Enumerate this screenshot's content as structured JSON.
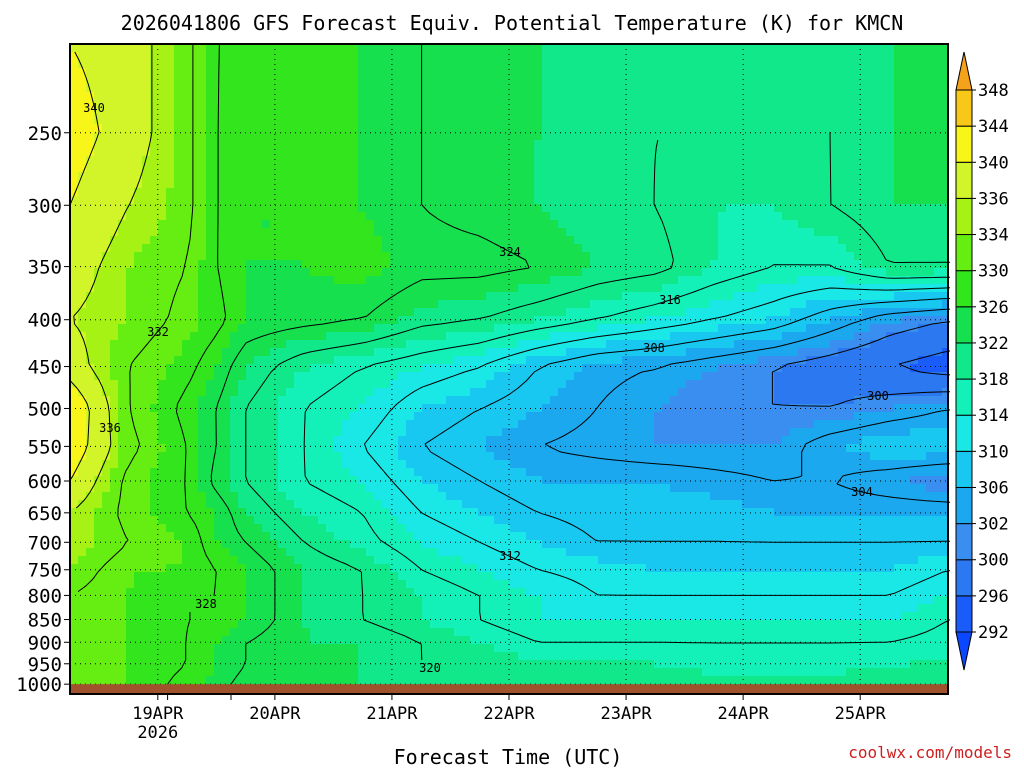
{
  "chart_data": {
    "type": "heatmap",
    "title": "2026041806 GFS Forecast Equiv. Potential Temperature (K) for KMCN",
    "xlabel": "Forecast Time (UTC)",
    "ylabel": "",
    "y_axis": {
      "scale": "log-pressure",
      "inverted": true,
      "ylim": [
        200,
        1025
      ],
      "ticks": [
        250,
        300,
        350,
        400,
        450,
        500,
        550,
        600,
        650,
        700,
        750,
        800,
        850,
        900,
        950,
        1000
      ],
      "tick_labels": [
        "250",
        "300",
        "350",
        "400",
        "450",
        "500",
        "550",
        "600",
        "650",
        "700",
        "750",
        "800",
        "850",
        "900",
        "950",
        "1000"
      ]
    },
    "x_axis": {
      "xlim": [
        "2026-04-18T06",
        "2026-04-25T18"
      ],
      "ticks": [
        "2026-04-19T00",
        "2026-04-20T00",
        "2026-04-21T00",
        "2026-04-22T00",
        "2026-04-23T00",
        "2026-04-24T00",
        "2026-04-25T00"
      ],
      "tick_labels": [
        "19APR",
        "20APR",
        "21APR",
        "22APR",
        "23APR",
        "24APR",
        "25APR"
      ],
      "first_tick_sublabel": "2026"
    },
    "grid": "dotted",
    "colorbar": {
      "placement": "right",
      "labels": [
        "292",
        "296",
        "300",
        "302",
        "306",
        "310",
        "314",
        "318",
        "322",
        "326",
        "330",
        "334",
        "336",
        "340",
        "344",
        "348"
      ],
      "colors": [
        "#0a47ff",
        "#1a5cfa",
        "#2c78f0",
        "#3a8ef0",
        "#1ba8ee",
        "#18c8f0",
        "#19e8e6",
        "#13f0b8",
        "#10e88a",
        "#16e04e",
        "#33e51c",
        "#66ee12",
        "#a6f214",
        "#d2f52a",
        "#f8f518",
        "#f7c818",
        "#f4a21a"
      ]
    },
    "theta_e_field_K": {
      "times": [
        "2026-04-18T06",
        "2026-04-18T18",
        "2026-04-19T06",
        "2026-04-19T12",
        "2026-04-19T18",
        "2026-04-20T06",
        "2026-04-20T18",
        "2026-04-21T06",
        "2026-04-21T18",
        "2026-04-22T06",
        "2026-04-22T18",
        "2026-04-23T06",
        "2026-04-23T18",
        "2026-04-24T06",
        "2026-04-24T18",
        "2026-04-25T06",
        "2026-04-25T18"
      ],
      "levels_hPa": [
        200,
        250,
        300,
        350,
        400,
        450,
        500,
        550,
        600,
        650,
        700,
        750,
        800,
        850,
        900,
        950,
        1000
      ],
      "values": [
        [
          340,
          342,
          340,
          338,
          336,
          338,
          344,
          343,
          340,
          336,
          336,
          334,
          332,
          332,
          332,
          332,
          332
        ],
        [
          338,
          338,
          336,
          334,
          334,
          332,
          332,
          333,
          331,
          331,
          332,
          330,
          330,
          330,
          330,
          330,
          330
        ],
        [
          333,
          333,
          333,
          332,
          331,
          329,
          327,
          328,
          328,
          328,
          330,
          330,
          328,
          328,
          328,
          328,
          327
        ],
        [
          328,
          328,
          328,
          328,
          329,
          326,
          324,
          324,
          323,
          326,
          326,
          328,
          328,
          328,
          326,
          326,
          325
        ],
        [
          327,
          326,
          326,
          326,
          326,
          322,
          320,
          320,
          320,
          322,
          324,
          326,
          326,
          326,
          324,
          324,
          323
        ],
        [
          327,
          327,
          326,
          326,
          325,
          318,
          316,
          316,
          316,
          318,
          320,
          322,
          322,
          322,
          322,
          322,
          322
        ],
        [
          326,
          326,
          326,
          327,
          324,
          316,
          314,
          312,
          314,
          316,
          317,
          320,
          320,
          320,
          322,
          322,
          322
        ],
        [
          324,
          324,
          324,
          325,
          321,
          314,
          310,
          308,
          310,
          312,
          314,
          316,
          318,
          318,
          320,
          320,
          320
        ],
        [
          323,
          323,
          323,
          325,
          320,
          312,
          308,
          306,
          308,
          310,
          312,
          314,
          316,
          316,
          318,
          320,
          320
        ],
        [
          322,
          322,
          322,
          324,
          318,
          308,
          306,
          304,
          306,
          308,
          310,
          312,
          314,
          314,
          316,
          318,
          320
        ],
        [
          322,
          321,
          320,
          322,
          316,
          305,
          304,
          303,
          306,
          307,
          308,
          311,
          312,
          314,
          316,
          318,
          320
        ],
        [
          320,
          320,
          320,
          321,
          314,
          304,
          302,
          302,
          306,
          307,
          308,
          310,
          312,
          314,
          316,
          318,
          320
        ],
        [
          320,
          320,
          318,
          318,
          312,
          302,
          300,
          302,
          305,
          307,
          308,
          310,
          312,
          314,
          316,
          317,
          319
        ],
        [
          320,
          320,
          318,
          316,
          310,
          300,
          300,
          302,
          304,
          306,
          308,
          310,
          312,
          314,
          316,
          317,
          319
        ],
        [
          320,
          320,
          320,
          316,
          306,
          298,
          300,
          306,
          304,
          306,
          308,
          310,
          312,
          314,
          316,
          317,
          319
        ],
        [
          322,
          322,
          322,
          320,
          302,
          296,
          302,
          308,
          302,
          306,
          308,
          310,
          312,
          314,
          316,
          318,
          319
        ],
        [
          322,
          322,
          322,
          320,
          300,
          294,
          304,
          308,
          300,
          306,
          308,
          312,
          314,
          316,
          317,
          318,
          320
        ]
      ]
    },
    "contour_labels": [
      "340",
      "336",
      "332",
      "328",
      "324",
      "320",
      "316",
      "312",
      "308",
      "304",
      "300"
    ],
    "surface_band": true
  },
  "footer": {
    "credit": "coolwx.com/models"
  },
  "colors": {
    "surface": "#a0522d",
    "contour_line": "#000000",
    "credit_text": "#cc2020"
  }
}
